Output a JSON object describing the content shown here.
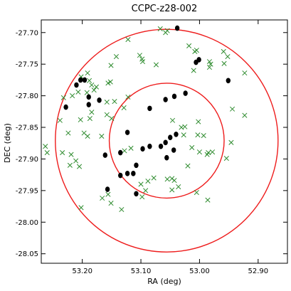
{
  "chart_data": {
    "type": "scatter",
    "title": "CCPC-z28-002",
    "xlabel": "RA (deg)",
    "ylabel": "DEC (deg)",
    "xlim": [
      53.27,
      52.85
    ],
    "ylim": [
      -28.065,
      -27.68
    ],
    "x_ticks": [
      53.2,
      53.1,
      53.0,
      52.9
    ],
    "x_tick_labels": [
      "53.20",
      "53.10",
      "53.00",
      "52.90"
    ],
    "y_ticks": [
      -27.7,
      -27.75,
      -27.8,
      -27.85,
      -27.9,
      -27.95,
      -28.0,
      -28.05
    ],
    "y_tick_labels": [
      "-27.70",
      "-27.75",
      "-27.80",
      "-27.85",
      "-27.90",
      "-27.95",
      "-28.00",
      "-28.05"
    ],
    "grid": false,
    "colors": {
      "filled": "#000000",
      "cross": "#2e8b2e",
      "circle": "#ee1c1c"
    },
    "circles": [
      {
        "center": [
          53.056,
          -27.871
        ],
        "radius_deg": 0.098
      },
      {
        "center": [
          53.056,
          -27.871
        ],
        "radius_deg": 0.19
      }
    ],
    "series": [
      {
        "marker": "filled-ellipse",
        "points": [
          [
            53.038,
            -27.693
          ],
          [
            53.001,
            -27.743
          ],
          [
            53.006,
            -27.747
          ],
          [
            52.951,
            -27.776
          ],
          [
            53.203,
            -27.775
          ],
          [
            53.196,
            -27.775
          ],
          [
            53.21,
            -27.783
          ],
          [
            53.189,
            -27.802
          ],
          [
            53.171,
            -27.807
          ],
          [
            53.024,
            -27.796
          ],
          [
            53.043,
            -27.801
          ],
          [
            53.058,
            -27.806
          ],
          [
            53.085,
            -27.82
          ],
          [
            53.189,
            -27.814
          ],
          [
            53.228,
            -27.818
          ],
          [
            53.123,
            -27.858
          ],
          [
            53.05,
            -27.866
          ],
          [
            53.058,
            -27.874
          ],
          [
            53.04,
            -27.861
          ],
          [
            53.066,
            -27.88
          ],
          [
            53.085,
            -27.88
          ],
          [
            53.097,
            -27.884
          ],
          [
            53.044,
            -27.886
          ],
          [
            53.056,
            -27.898
          ],
          [
            53.135,
            -27.89
          ],
          [
            53.161,
            -27.894
          ],
          [
            53.108,
            -27.91
          ],
          [
            53.113,
            -27.923
          ],
          [
            53.123,
            -27.923
          ],
          [
            53.135,
            -27.926
          ],
          [
            53.157,
            -27.948
          ],
          [
            53.108,
            -27.955
          ]
        ]
      },
      {
        "marker": "x",
        "points": [
          [
            53.122,
            -27.711
          ],
          [
            53.067,
            -27.694
          ],
          [
            53.055,
            -27.697
          ],
          [
            53.058,
            -27.7
          ],
          [
            53.018,
            -27.721
          ],
          [
            53.005,
            -27.728
          ],
          [
            53.008,
            -27.73
          ],
          [
            52.959,
            -27.73
          ],
          [
            52.952,
            -27.738
          ],
          [
            53.142,
            -27.738
          ],
          [
            53.102,
            -27.736
          ],
          [
            53.098,
            -27.742
          ],
          [
            53.097,
            -27.746
          ],
          [
            53.074,
            -27.751
          ],
          [
            53.151,
            -27.752
          ],
          [
            53.01,
            -27.76
          ],
          [
            52.983,
            -27.755
          ],
          [
            52.981,
            -27.75
          ],
          [
            52.983,
            -27.746
          ],
          [
            52.958,
            -27.749
          ],
          [
            52.923,
            -27.764
          ],
          [
            53.191,
            -27.764
          ],
          [
            53.202,
            -27.77
          ],
          [
            53.188,
            -27.776
          ],
          [
            53.184,
            -27.783
          ],
          [
            53.176,
            -27.786
          ],
          [
            53.18,
            -27.791
          ],
          [
            53.156,
            -27.78
          ],
          [
            53.152,
            -27.778
          ],
          [
            53.207,
            -27.794
          ],
          [
            53.217,
            -27.8
          ],
          [
            53.232,
            -27.803
          ],
          [
            53.192,
            -27.795
          ],
          [
            53.158,
            -27.81
          ],
          [
            53.145,
            -27.809
          ],
          [
            53.122,
            -27.802
          ],
          [
            53.158,
            -27.83
          ],
          [
            53.15,
            -27.836
          ],
          [
            53.187,
            -27.836
          ],
          [
            53.203,
            -27.838
          ],
          [
            53.238,
            -27.839
          ],
          [
            53.184,
            -27.826
          ],
          [
            53.129,
            -27.819
          ],
          [
            52.944,
            -27.821
          ],
          [
            52.923,
            -27.831
          ],
          [
            53.046,
            -27.839
          ],
          [
            53.025,
            -27.849
          ],
          [
            53.002,
            -27.841
          ],
          [
            53.031,
            -27.85
          ],
          [
            53.224,
            -27.859
          ],
          [
            53.197,
            -27.859
          ],
          [
            53.191,
            -27.864
          ],
          [
            53.167,
            -27.864
          ],
          [
            53.027,
            -27.862
          ],
          [
            53.003,
            -27.862
          ],
          [
            52.993,
            -27.863
          ],
          [
            52.946,
            -27.874
          ],
          [
            52.985,
            -27.89
          ],
          [
            52.987,
            -27.893
          ],
          [
            53.263,
            -27.88
          ],
          [
            53.26,
            -27.89
          ],
          [
            53.234,
            -27.89
          ],
          [
            53.219,
            -27.893
          ],
          [
            53.211,
            -27.903
          ],
          [
            53.205,
            -27.912
          ],
          [
            53.221,
            -27.91
          ],
          [
            53.128,
            -27.887
          ],
          [
            53.117,
            -27.883
          ],
          [
            53.013,
            -27.882
          ],
          [
            53.0,
            -27.889
          ],
          [
            52.978,
            -27.889
          ],
          [
            52.954,
            -27.899
          ],
          [
            53.02,
            -27.911
          ],
          [
            53.088,
            -27.935
          ],
          [
            53.078,
            -27.93
          ],
          [
            53.055,
            -27.932
          ],
          [
            53.047,
            -27.931
          ],
          [
            53.043,
            -27.934
          ],
          [
            53.036,
            -27.944
          ],
          [
            53.047,
            -27.949
          ],
          [
            53.092,
            -27.95
          ],
          [
            53.098,
            -27.96
          ],
          [
            53.005,
            -27.953
          ],
          [
            52.986,
            -27.965
          ],
          [
            53.166,
            -27.962
          ],
          [
            53.151,
            -27.97
          ],
          [
            53.133,
            -27.98
          ],
          [
            53.202,
            -27.977
          ],
          [
            53.1,
            -27.94
          ],
          [
            53.156,
            -27.956
          ]
        ]
      }
    ]
  }
}
